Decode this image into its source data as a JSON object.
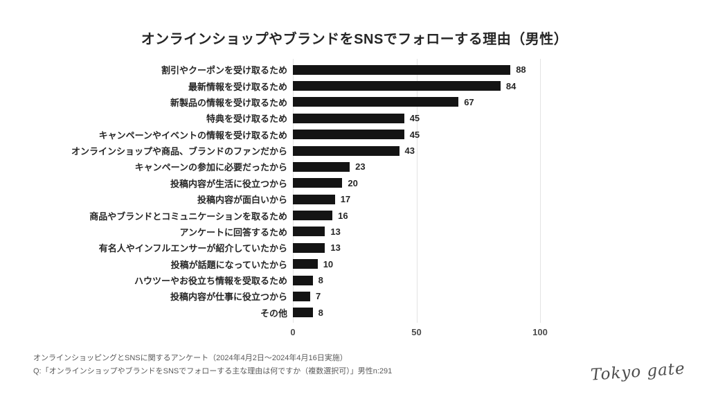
{
  "title": "オンラインショップやブランドをSNSでフォローする理由（男性）",
  "chart_data": {
    "type": "bar",
    "orientation": "horizontal",
    "title": "オンラインショップやブランドをSNSでフォローする理由（男性）",
    "categories": [
      "割引やクーポンを受け取るため",
      "最新情報を受け取るため",
      "新製品の情報を受け取るため",
      "特典を受け取るため",
      "キャンペーンやイベントの情報を受け取るため",
      "オンラインショップや商品、ブランドのファンだから",
      "キャンペーンの参加に必要だったから",
      "投稿内容が生活に役立つから",
      "投稿内容が面白いから",
      "商品やブランドとコミュニケーションを取るため",
      "アンケートに回答するため",
      "有名人やインフルエンサーが紹介していたから",
      "投稿が話題になっていたから",
      "ハウツーやお役立ち情報を受取るため",
      "投稿内容が仕事に役立つから",
      "その他"
    ],
    "values": [
      88,
      84,
      67,
      45,
      45,
      43,
      23,
      20,
      17,
      16,
      13,
      13,
      10,
      8,
      7,
      8
    ],
    "xlabel": "",
    "ylabel": "",
    "xticks": [
      0,
      50,
      100
    ],
    "xlim": [
      0,
      100
    ],
    "grid": true,
    "value_labels": true,
    "legend": false
  },
  "footer": {
    "line1": "オンラインショッピングとSNSに関するアンケート（2024年4月2日〜2024年4月16日実施）",
    "line2": "Q:「オンラインショップやブランドをSNSでフォローする主な理由は何ですか（複数選択可）」男性n:291"
  },
  "logo": {
    "text": "Tokyo gate"
  },
  "colors": {
    "bar": "#141414",
    "grid": "#e3e3e3",
    "text": "#262626",
    "muted": "#595959"
  }
}
